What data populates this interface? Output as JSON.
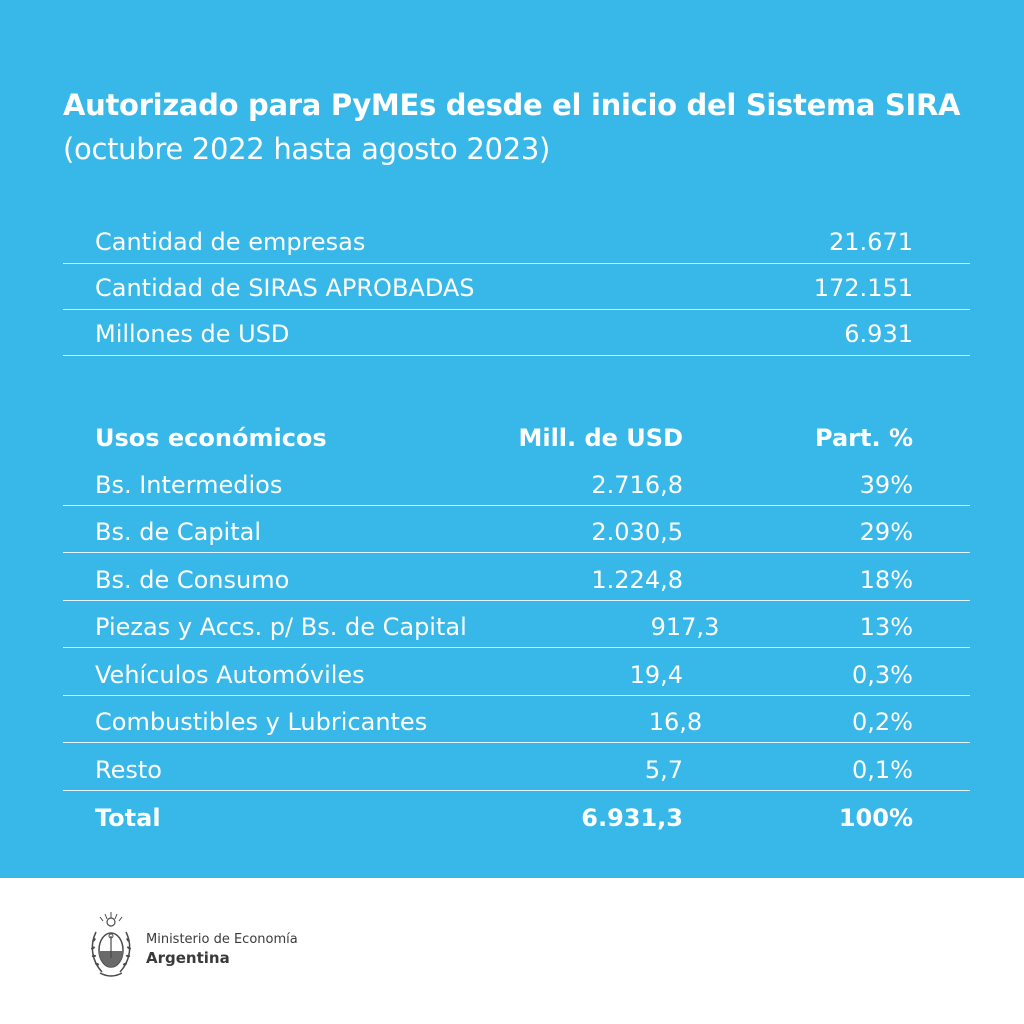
{
  "header": {
    "title": "Autorizado para PyMEs desde el inicio del Sistema SIRA",
    "subtitle": "(octubre 2022 hasta agosto 2023)"
  },
  "summary": [
    {
      "label": "Cantidad de empresas",
      "value": "21.671"
    },
    {
      "label": "Cantidad de SIRAS APROBADAS",
      "value": "172.151"
    },
    {
      "label": "Millones de USD",
      "value": "6.931"
    }
  ],
  "usos": {
    "headers": [
      "Usos económicos",
      "Mill. de USD",
      "Part. %"
    ],
    "rows": [
      {
        "label": "Bs. Intermedios",
        "usd": "2.716,8",
        "part": "39%"
      },
      {
        "label": "Bs. de Capital",
        "usd": "2.030,5",
        "part": "29%"
      },
      {
        "label": "Bs. de Consumo",
        "usd": "1.224,8",
        "part": "18%"
      },
      {
        "label": "Piezas y Accs. p/ Bs. de Capital",
        "usd": "917,3",
        "part": "13%"
      },
      {
        "label": "Vehículos Automóviles",
        "usd": "19,4",
        "part": "0,3%"
      },
      {
        "label": "Combustibles y Lubricantes",
        "usd": "16,8",
        "part": "0,2%"
      },
      {
        "label": "Resto",
        "usd": "5,7",
        "part": "0,1%"
      }
    ],
    "total": {
      "label": "Total",
      "usd": "6.931,3",
      "part": "100%"
    }
  },
  "footer": {
    "line1": "Ministerio de Economía",
    "line2": "Argentina"
  },
  "colors": {
    "panel": "#37b8e9",
    "text": "#ffffff",
    "footer_text": "#3a3a3a"
  },
  "icons": {
    "seal": "coat-of-arms-icon"
  }
}
